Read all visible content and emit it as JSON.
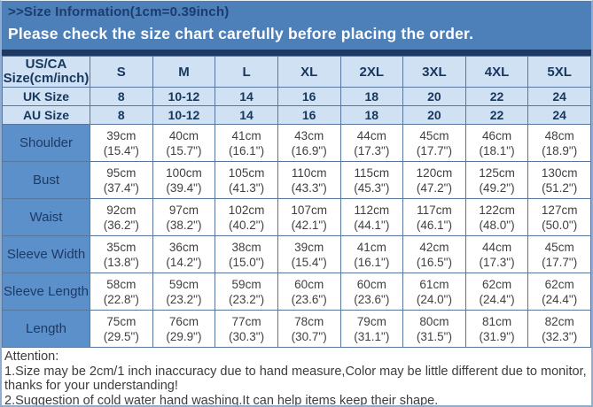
{
  "header": {
    "title": ">>Size Information(1cm=0.39inch)",
    "subtitle": "Please check the size chart carefully before placing the order."
  },
  "table": {
    "corner": {
      "line1": "US/CA",
      "line2": "Size(cm/inch)"
    },
    "size_columns": [
      "S",
      "M",
      "L",
      "XL",
      "2XL",
      "3XL",
      "4XL",
      "5XL"
    ],
    "region_rows": [
      {
        "label": "UK Size",
        "values": [
          "8",
          "10-12",
          "14",
          "16",
          "18",
          "20",
          "22",
          "24"
        ]
      },
      {
        "label": "AU Size",
        "values": [
          "8",
          "10-12",
          "14",
          "16",
          "18",
          "20",
          "22",
          "24"
        ]
      }
    ],
    "measurement_rows": [
      {
        "label": "Shoulder",
        "cells": [
          {
            "cm": "39cm",
            "inch": "(15.4\")"
          },
          {
            "cm": "40cm",
            "inch": "(15.7\")"
          },
          {
            "cm": "41cm",
            "inch": "(16.1\")"
          },
          {
            "cm": "43cm",
            "inch": "(16.9\")"
          },
          {
            "cm": "44cm",
            "inch": "(17.3\")"
          },
          {
            "cm": "45cm",
            "inch": "(17.7\")"
          },
          {
            "cm": "46cm",
            "inch": "(18.1\")"
          },
          {
            "cm": "48cm",
            "inch": "(18.9\")"
          }
        ]
      },
      {
        "label": "Bust",
        "cells": [
          {
            "cm": "95cm",
            "inch": "(37.4\")"
          },
          {
            "cm": "100cm",
            "inch": "(39.4\")"
          },
          {
            "cm": "105cm",
            "inch": "(41.3\")"
          },
          {
            "cm": "110cm",
            "inch": "(43.3\")"
          },
          {
            "cm": "115cm",
            "inch": "(45.3\")"
          },
          {
            "cm": "120cm",
            "inch": "(47.2\")"
          },
          {
            "cm": "125cm",
            "inch": "(49.2\")"
          },
          {
            "cm": "130cm",
            "inch": "(51.2\")"
          }
        ]
      },
      {
        "label": "Waist",
        "cells": [
          {
            "cm": "92cm",
            "inch": "(36.2\")"
          },
          {
            "cm": "97cm",
            "inch": "(38.2\")"
          },
          {
            "cm": "102cm",
            "inch": "(40.2\")"
          },
          {
            "cm": "107cm",
            "inch": "(42.1\")"
          },
          {
            "cm": "112cm",
            "inch": "(44.1\")"
          },
          {
            "cm": "117cm",
            "inch": "(46.1\")"
          },
          {
            "cm": "122cm",
            "inch": "(48.0\")"
          },
          {
            "cm": "127cm",
            "inch": "(50.0\")"
          }
        ]
      },
      {
        "label": "Sleeve Width",
        "cells": [
          {
            "cm": "35cm",
            "inch": "(13.8\")"
          },
          {
            "cm": "36cm",
            "inch": "(14.2\")"
          },
          {
            "cm": "38cm",
            "inch": "(15.0\")"
          },
          {
            "cm": "39cm",
            "inch": "(15.4\")"
          },
          {
            "cm": "41cm",
            "inch": "(16.1\")"
          },
          {
            "cm": "42cm",
            "inch": "(16.5\")"
          },
          {
            "cm": "44cm",
            "inch": "(17.3\")"
          },
          {
            "cm": "45cm",
            "inch": "(17.7\")"
          }
        ]
      },
      {
        "label": "Sleeve Length",
        "cells": [
          {
            "cm": "58cm",
            "inch": "(22.8\")"
          },
          {
            "cm": "59cm",
            "inch": "(23.2\")"
          },
          {
            "cm": "59cm",
            "inch": "(23.2\")"
          },
          {
            "cm": "60cm",
            "inch": "(23.6\")"
          },
          {
            "cm": "60cm",
            "inch": "(23.6\")"
          },
          {
            "cm": "61cm",
            "inch": "(24.0\")"
          },
          {
            "cm": "62cm",
            "inch": "(24.4\")"
          },
          {
            "cm": "62cm",
            "inch": "(24.4\")"
          }
        ]
      },
      {
        "label": "Length",
        "cells": [
          {
            "cm": "75cm",
            "inch": "(29.5\")"
          },
          {
            "cm": "76cm",
            "inch": "(29.9\")"
          },
          {
            "cm": "77cm",
            "inch": "(30.3\")"
          },
          {
            "cm": "78cm",
            "inch": "(30.7\")"
          },
          {
            "cm": "79cm",
            "inch": "(31.1\")"
          },
          {
            "cm": "80cm",
            "inch": "(31.5\")"
          },
          {
            "cm": "81cm",
            "inch": "(31.9\")"
          },
          {
            "cm": "82cm",
            "inch": "(32.3\")"
          }
        ]
      }
    ]
  },
  "attention": {
    "title": "Attention:",
    "note1": "1.Size may be 2cm/1 inch inaccuracy due to hand measure,Color may be little different due to monitor,thanks for your understanding!",
    "note2": "2.Suggestion of cold water hand washing.It can help items keep their shape."
  },
  "colors": {
    "banner_bg": "#4d7fb9",
    "banner_title_text": "#1b3c6d",
    "banner_subtitle_text": "#ffffff",
    "banner_divider": "#1e3a64",
    "header_cell_bg": "#cfe1f3",
    "label_cell_bg": "#5c90ca",
    "header_text": "#17375e",
    "cell_text": "#404040",
    "table_border": "#57779f"
  }
}
